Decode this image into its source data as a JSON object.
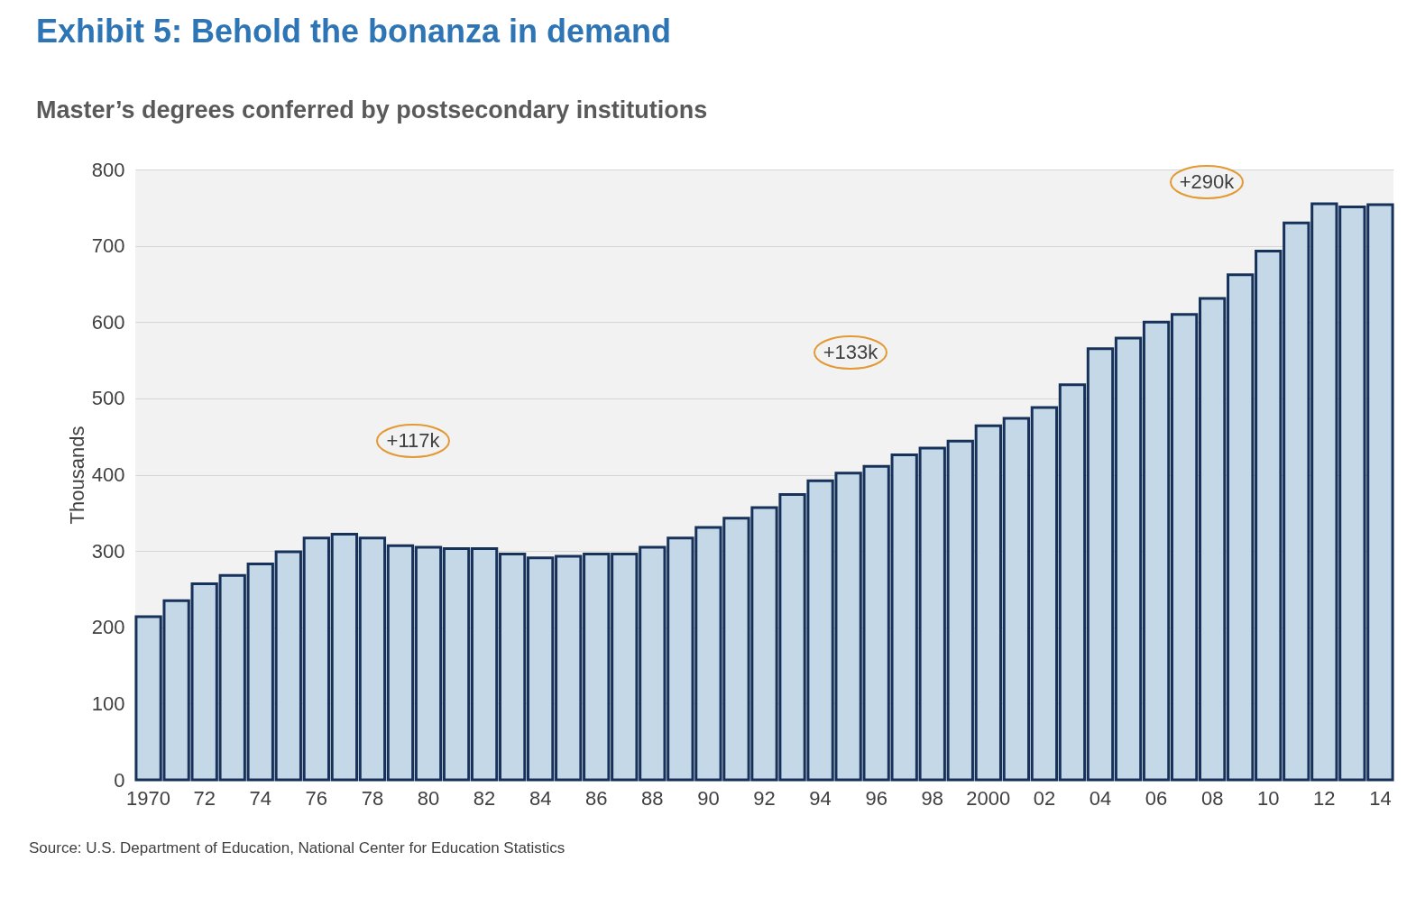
{
  "chart_data": {
    "type": "bar",
    "title": "Exhibit 5: Behold the bonanza in demand",
    "subtitle": "Master’s degrees conferred by postsecondary institutions",
    "ylabel": "Thousands",
    "categories": [
      "1970",
      null,
      "72",
      null,
      "74",
      null,
      "76",
      null,
      "78",
      null,
      "80",
      null,
      "82",
      null,
      "84",
      null,
      "86",
      null,
      "88",
      null,
      "90",
      null,
      "92",
      null,
      "94",
      null,
      "96",
      null,
      "98",
      null,
      "2000",
      null,
      "02",
      null,
      "04",
      null,
      "06",
      null,
      "08",
      null,
      "10",
      null,
      "12",
      null,
      "14"
    ],
    "values": [
      214,
      235,
      257,
      268,
      283,
      299,
      317,
      322,
      317,
      307,
      305,
      303,
      303,
      296,
      291,
      293,
      296,
      296,
      305,
      317,
      331,
      343,
      357,
      374,
      392,
      402,
      411,
      426,
      435,
      444,
      464,
      474,
      488,
      518,
      565,
      579,
      600,
      610,
      631,
      662,
      693,
      730,
      755,
      751,
      754
    ],
    "color": "#c5d8e8",
    "ylim": [
      0,
      800
    ],
    "yticks": [
      0,
      100,
      200,
      300,
      400,
      500,
      600,
      700,
      800
    ],
    "grid": "y",
    "annotations": [
      "+117k",
      "+133k",
      "+290k",
      "Source: U.S. Department of Education, National Center for Education Statistics"
    ]
  }
}
